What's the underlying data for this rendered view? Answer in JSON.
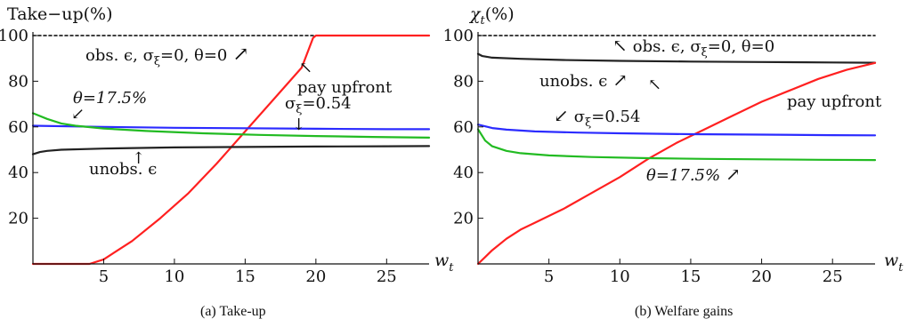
{
  "chart_data": [
    {
      "type": "line",
      "caption": "(a) Take-up",
      "ylabel": "Take−up(%)",
      "xlabel": "w",
      "xlabel_sub": "t",
      "xlim": [
        0,
        28
      ],
      "ylim": [
        0,
        100
      ],
      "xticks": [
        5,
        10,
        15,
        20,
        25
      ],
      "yticks": [
        20,
        40,
        60,
        80,
        100
      ],
      "series": [
        {
          "name": "obs. ϵ, σξ=0, θ=0",
          "color": "#000000",
          "dash": true,
          "x": [
            0,
            28
          ],
          "y": [
            100,
            100
          ]
        },
        {
          "name": "pay upfront",
          "color": "#ff2020",
          "x": [
            0,
            4,
            5,
            7,
            9,
            11,
            13,
            15,
            17,
            19,
            19.8,
            20,
            28
          ],
          "y": [
            0,
            0,
            2,
            10,
            20,
            31,
            44,
            58,
            72,
            86,
            99,
            100,
            100
          ]
        },
        {
          "name": "σξ=0.54",
          "color": "#2b2bff",
          "x": [
            0,
            5,
            10,
            15,
            20,
            25,
            28
          ],
          "y": [
            60.5,
            60,
            59.6,
            59.4,
            59.2,
            59,
            59
          ]
        },
        {
          "name": "θ=17.5%",
          "color": "#22bb22",
          "x": [
            0,
            1,
            2,
            3,
            5,
            8,
            12,
            16,
            20,
            24,
            28
          ],
          "y": [
            66,
            63.5,
            61.5,
            60.5,
            59.3,
            58.2,
            57.2,
            56.5,
            56,
            55.6,
            55.3
          ]
        },
        {
          "name": "unobs. ϵ",
          "color": "#222222",
          "x": [
            0,
            0.5,
            1,
            2,
            5,
            10,
            15,
            20,
            25,
            28
          ],
          "y": [
            48,
            49,
            49.5,
            50,
            50.5,
            51,
            51.2,
            51.4,
            51.5,
            51.6
          ]
        }
      ],
      "annotations": [
        {
          "text": "obs. ϵ, σ",
          "sub": "ξ",
          "rest": "=0, θ=0",
          "arrow": "↗"
        },
        {
          "text": "pay upfront",
          "arrow": "↖"
        },
        {
          "text": "θ=17.5%",
          "arrow": "↙"
        },
        {
          "text": "σ",
          "sub": "ξ",
          "rest": "=0.54",
          "arrow": "↓"
        },
        {
          "text": "unobs. ϵ",
          "arrow": "↑"
        }
      ]
    },
    {
      "type": "line",
      "caption": "(b) Welfare gains",
      "ylabel": "χ",
      "ylabel_sub": "t",
      "ylabel_rest": "(%)",
      "xlabel": "w",
      "xlabel_sub": "t",
      "xlim": [
        0,
        28
      ],
      "ylim": [
        0,
        100
      ],
      "xticks": [
        5,
        10,
        15,
        20,
        25
      ],
      "yticks": [
        20,
        40,
        60,
        80,
        100
      ],
      "series": [
        {
          "name": "obs. ϵ, σξ=0, θ=0",
          "color": "#000000",
          "dash": true,
          "x": [
            0,
            28
          ],
          "y": [
            100,
            100
          ]
        },
        {
          "name": "unobs. ϵ",
          "color": "#222222",
          "x": [
            0,
            0.3,
            1,
            3,
            6,
            10,
            15,
            20,
            25,
            28
          ],
          "y": [
            92,
            91,
            90.3,
            89.8,
            89.3,
            88.9,
            88.6,
            88.4,
            88.2,
            88.1
          ]
        },
        {
          "name": "pay upfront",
          "color": "#ff2020",
          "x": [
            0,
            0.5,
            1,
            2,
            3,
            4,
            5,
            6,
            8,
            10,
            12,
            14,
            16,
            18,
            20,
            22,
            24,
            26,
            28
          ],
          "y": [
            0,
            3,
            6,
            11,
            15,
            18,
            21,
            24,
            31,
            38,
            46,
            53,
            59,
            65,
            71,
            76,
            81,
            85,
            88
          ]
        },
        {
          "name": "σξ=0.54",
          "color": "#2b2bff",
          "x": [
            0,
            1,
            2,
            4,
            7,
            10,
            15,
            20,
            25,
            28
          ],
          "y": [
            61,
            59.5,
            58.8,
            58,
            57.5,
            57.2,
            56.8,
            56.6,
            56.4,
            56.3
          ]
        },
        {
          "name": "θ=17.5%",
          "color": "#22bb22",
          "x": [
            0,
            0.5,
            1,
            2,
            3,
            5,
            8,
            12,
            16,
            20,
            24,
            28
          ],
          "y": [
            59,
            54,
            51.5,
            49.5,
            48.5,
            47.5,
            46.8,
            46.3,
            46,
            45.8,
            45.6,
            45.5
          ]
        }
      ],
      "annotations": [
        {
          "text": "obs. ϵ, σ",
          "sub": "ξ",
          "rest": "=0, θ=0",
          "arrow": "↖"
        },
        {
          "text": "unobs. ϵ",
          "arrow": "↗"
        },
        {
          "text": "pay upfront",
          "arrow": "↖"
        },
        {
          "text": "σ",
          "sub": "ξ",
          "rest": "=0.54",
          "arrow": "↙"
        },
        {
          "text": "θ=17.5%",
          "arrow": "↗"
        }
      ]
    }
  ]
}
